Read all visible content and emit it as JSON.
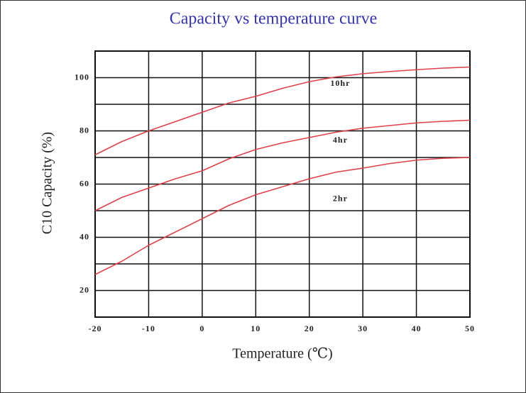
{
  "chart_data": {
    "type": "line",
    "title": "Capacity vs temperature curve",
    "xlabel": "Temperature (℃)",
    "ylabel": "C10 Capacity (%)",
    "xlim": [
      -20,
      50
    ],
    "ylim": [
      10,
      110
    ],
    "xticks": [
      -20,
      -10,
      0,
      10,
      20,
      30,
      40,
      50
    ],
    "yticks": [
      20,
      40,
      60,
      80,
      100
    ],
    "minor_yticks": [
      30,
      50,
      70,
      90
    ],
    "grid": true,
    "series": [
      {
        "name": "10hr",
        "color": "#e0404a",
        "x": [
          -20,
          -15,
          -10,
          -5,
          0,
          5,
          10,
          15,
          20,
          25,
          30,
          35,
          40,
          45,
          50
        ],
        "values": [
          71,
          76,
          80,
          83.5,
          87,
          90.5,
          93,
          96,
          98.5,
          100.3,
          101.5,
          102.3,
          103,
          103.6,
          104
        ]
      },
      {
        "name": "4hr",
        "color": "#e0404a",
        "x": [
          -20,
          -15,
          -10,
          -5,
          0,
          5,
          10,
          15,
          20,
          25,
          30,
          35,
          40,
          45,
          50
        ],
        "values": [
          50,
          55,
          58.5,
          62,
          65,
          69.5,
          73,
          75.5,
          77.5,
          79.5,
          81,
          82,
          83,
          83.6,
          84
        ]
      },
      {
        "name": "2hr",
        "color": "#e0404a",
        "x": [
          -20,
          -15,
          -10,
          -5,
          0,
          5,
          10,
          15,
          20,
          25,
          30,
          35,
          40,
          45,
          50
        ],
        "values": [
          26,
          31,
          37,
          42,
          47,
          52,
          56,
          59,
          62,
          64.5,
          66,
          67.7,
          69,
          69.7,
          70
        ]
      }
    ]
  }
}
